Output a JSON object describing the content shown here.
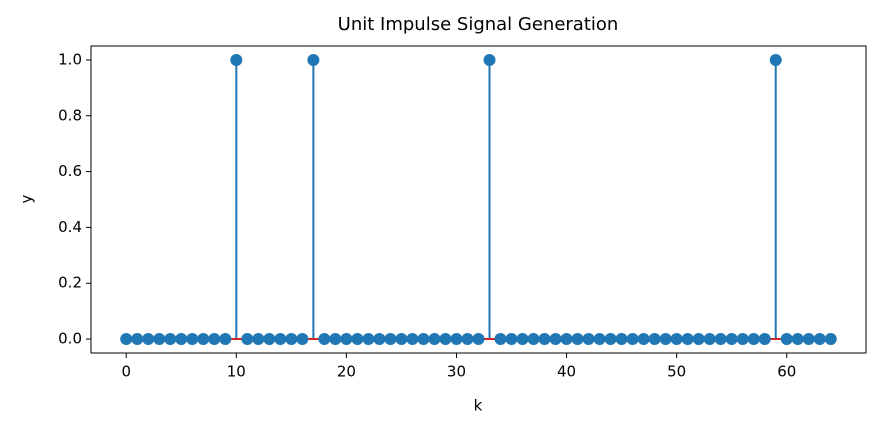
{
  "chart_data": {
    "type": "stem",
    "title": "Unit Impulse Signal Generation",
    "x_label": "k",
    "y_label": "y",
    "x": [
      0,
      1,
      2,
      3,
      4,
      5,
      6,
      7,
      8,
      9,
      10,
      11,
      12,
      13,
      14,
      15,
      16,
      17,
      18,
      19,
      20,
      21,
      22,
      23,
      24,
      25,
      26,
      27,
      28,
      29,
      30,
      31,
      32,
      33,
      34,
      35,
      36,
      37,
      38,
      39,
      40,
      41,
      42,
      43,
      44,
      45,
      46,
      47,
      48,
      49,
      50,
      51,
      52,
      53,
      54,
      55,
      56,
      57,
      58,
      59,
      60,
      61,
      62,
      63,
      64
    ],
    "values": [
      0,
      0,
      0,
      0,
      0,
      0,
      0,
      0,
      0,
      0,
      1,
      0,
      0,
      0,
      0,
      0,
      0,
      1,
      0,
      0,
      0,
      0,
      0,
      0,
      0,
      0,
      0,
      0,
      0,
      0,
      0,
      0,
      0,
      1,
      0,
      0,
      0,
      0,
      0,
      0,
      0,
      0,
      0,
      0,
      0,
      0,
      0,
      0,
      0,
      0,
      0,
      0,
      0,
      0,
      0,
      0,
      0,
      0,
      0,
      1,
      0,
      0,
      0,
      0,
      0
    ],
    "color": "#1f77b4",
    "baseline_color": "#d62728",
    "xlim": [
      -3.2,
      67.2
    ],
    "xticks": [
      0,
      10,
      20,
      30,
      40,
      50,
      60
    ],
    "ylim": [
      -0.05,
      1.05
    ],
    "yticks": [
      {
        "value": 0,
        "label": "0.0"
      },
      0.2,
      0.4,
      0.6,
      0.8,
      {
        "value": 1,
        "label": "1.0"
      }
    ]
  }
}
